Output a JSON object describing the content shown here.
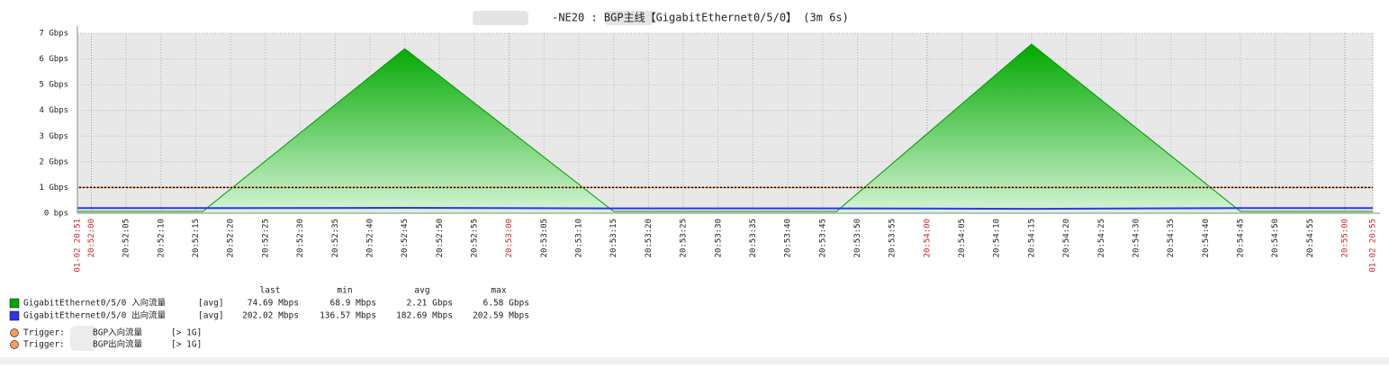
{
  "chart_data": {
    "type": "area",
    "title": "-NE20 : BGP主线【GigabitEthernet0/5/0】 (3m 6s)",
    "x": [
      "20:51:58",
      "20:52:16",
      "20:52:45",
      "20:53:15",
      "20:53:47",
      "20:54:15",
      "20:54:45",
      "20:55:04"
    ],
    "series": [
      {
        "name": "GigabitEthernet0/5/0 入向流量",
        "color": "#00aa00",
        "func": "[avg]",
        "values": [
          0.07,
          0.07,
          6.4,
          0.07,
          0.07,
          6.58,
          0.07,
          0.07
        ],
        "last": "74.69 Mbps",
        "min": "68.9 Mbps",
        "avg": "2.21 Gbps",
        "max": "6.58 Gbps",
        "fill": true
      },
      {
        "name": "GigabitEthernet0/5/0 出向流量",
        "color": "#3333ee",
        "func": "[avg]",
        "values": [
          0.2,
          0.2,
          0.21,
          0.19,
          0.19,
          0.17,
          0.2,
          0.2
        ],
        "last": "202.02 Mbps",
        "min": "136.57 Mbps",
        "avg": "182.69 Mbps",
        "max": "202.59 Mbps",
        "fill": false
      }
    ],
    "legend_columns": [
      "last",
      "min",
      "avg",
      "max"
    ],
    "triggers": [
      {
        "label": "Trigger:",
        "name": "BGP入向流量",
        "condition": "[> 1G]",
        "value": 1,
        "color": "#ff9955"
      },
      {
        "label": "Trigger:",
        "name": "BGP出向流量",
        "condition": "[> 1G]",
        "value": 1,
        "color": "#ff9955"
      }
    ],
    "xlim": [
      "20:51:58",
      "20:55:04"
    ],
    "xticks": [
      {
        "value": "20:51:58",
        "label": "01-02 20:51"
      },
      "20:52:00",
      "20:52:05",
      "20:52:10",
      "20:52:15",
      "20:52:20",
      "20:52:25",
      "20:52:30",
      "20:52:35",
      "20:52:40",
      "20:52:45",
      "20:52:50",
      "20:52:55",
      "20:53:00",
      "20:53:05",
      "20:53:10",
      "20:53:15",
      "20:53:20",
      "20:53:25",
      "20:53:30",
      "20:53:35",
      "20:53:40",
      "20:53:45",
      "20:53:50",
      "20:53:55",
      "20:54:00",
      "20:54:05",
      "20:54:10",
      "20:54:15",
      "20:54:20",
      "20:54:25",
      "20:54:30",
      "20:54:35",
      "20:54:40",
      "20:54:45",
      "20:54:50",
      "20:54:55",
      "20:55:00",
      {
        "value": "20:55:04",
        "label": "01-02 20:55"
      }
    ],
    "ylim": [
      0,
      7
    ],
    "yticks": [
      {
        "value": 0,
        "label": "0 bps"
      },
      {
        "value": 1,
        "label": "1 Gbps"
      },
      {
        "value": 2,
        "label": "2 Gbps"
      },
      {
        "value": 3,
        "label": "3 Gbps"
      },
      {
        "value": 4,
        "label": "4 Gbps"
      },
      {
        "value": 5,
        "label": "5 Gbps"
      },
      {
        "value": 6,
        "label": "6 Gbps"
      },
      {
        "value": 7,
        "label": "7 Gbps"
      }
    ],
    "grid": true
  }
}
